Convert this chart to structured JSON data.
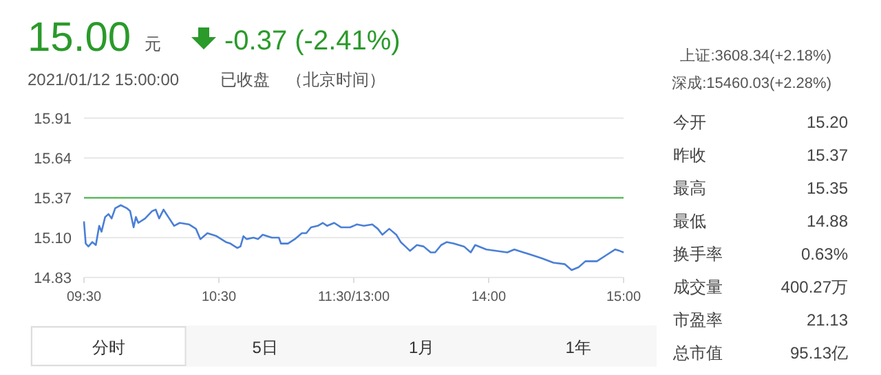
{
  "chart_data": [
    {
      "type": "line",
      "title": "15.00",
      "annotations": [
        "元",
        "-0.37 (-2.41%)",
        "2021/01/12 15:00:00",
        "已收盘",
        "（北京时间）",
        "上证:3608.34(+2.18%)",
        "深成:15460.03(+2.28%)",
        "分时",
        "5日",
        "1月",
        "1年"
      ],
      "series": [
        {
          "color": "#4a7fd6",
          "x": [
            9.5,
            9.513,
            9.533,
            9.562,
            9.588,
            9.613,
            9.63,
            9.657,
            9.682,
            9.705,
            9.732,
            9.773,
            9.817,
            9.842,
            9.868,
            9.885,
            9.903,
            9.953,
            10.005,
            10.032,
            10.057,
            10.09,
            10.125,
            10.168,
            10.21,
            10.278,
            10.33,
            10.363,
            10.415,
            10.483,
            10.552,
            10.585,
            10.637,
            10.66,
            10.682,
            10.705,
            10.757,
            10.79,
            10.825,
            10.893,
            10.945,
            10.96,
            11.012,
            11.063,
            11.115,
            11.148,
            11.183,
            11.233,
            11.27,
            11.303,
            11.355,
            11.405,
            11.473,
            11.5
          ],
          "values": [
            15.21,
            15.06,
            15.04,
            15.07,
            15.05,
            15.18,
            15.14,
            15.24,
            15.26,
            15.23,
            15.3,
            15.32,
            15.3,
            15.28,
            15.17,
            15.24,
            15.2,
            15.23,
            15.28,
            15.29,
            15.23,
            15.29,
            15.24,
            15.18,
            15.2,
            15.19,
            15.16,
            15.09,
            15.13,
            15.11,
            15.07,
            15.06,
            15.03,
            15.04,
            15.11,
            15.09,
            15.1,
            15.09,
            15.12,
            15.1,
            15.1,
            15.06,
            15.06,
            15.09,
            15.13,
            15.13,
            15.17,
            15.18,
            15.2,
            15.18,
            15.2,
            15.17,
            15.17,
            15.18
          ]
        }
      ],
      "xlim": [
        9.5,
        11.5
      ],
      "xticks": [
        {
          "value": 9.5,
          "label": "09:30"
        },
        {
          "value": 10.5,
          "label": "10:30"
        },
        {
          "value": 11.5,
          "label": "11:30/13:00"
        }
      ],
      "ylim": [
        14.83,
        15.91
      ],
      "yticks": [
        14.83,
        {
          "value": 15.1,
          "label": "15.10"
        },
        15.37,
        15.64,
        15.91
      ],
      "grid": "y",
      "marker": "none",
      "line_style": "solid",
      "ref_lines": [
        {
          "axis": "y",
          "value": 15.37,
          "color": "#5cb85c"
        }
      ]
    },
    {
      "type": "line",
      "series": [
        {
          "color": "#4a7fd6",
          "x": [
            13.0,
            13.023,
            13.075,
            13.137,
            13.178,
            13.212,
            13.263,
            13.315,
            13.348,
            13.383,
            13.417,
            13.468,
            13.518,
            13.57,
            13.603,
            13.648,
            13.69,
            13.74,
            13.817,
            13.867,
            13.9,
            13.983,
            14.138,
            14.19,
            14.327,
            14.393,
            14.48,
            14.565,
            14.615,
            14.667,
            14.717,
            14.802,
            14.87,
            14.938,
            14.972,
            15
          ],
          "values": [
            15.18,
            15.19,
            15.18,
            15.19,
            15.16,
            15.12,
            15.16,
            15.12,
            15.07,
            15.04,
            15.01,
            15.05,
            15.04,
            15.0,
            15.0,
            15.05,
            15.07,
            15.06,
            15.04,
            15.0,
            15.05,
            15.02,
            15.0,
            15.02,
            14.98,
            14.96,
            14.93,
            14.92,
            14.88,
            14.9,
            14.94,
            14.94,
            14.98,
            15.02,
            15.01,
            15.0
          ]
        }
      ],
      "xlim": [
        13,
        15
      ],
      "xticks": [
        {
          "value": 13,
          "label": null
        },
        {
          "value": 14,
          "label": "14:00"
        },
        {
          "value": 15,
          "label": "15:00"
        }
      ],
      "ylim": [
        14.83,
        15.91
      ],
      "yticks": [
        14.83,
        15.1,
        15.37,
        15.64,
        15.91
      ],
      "tick_labels": "x",
      "grid": "y",
      "marker": "none",
      "line_style": "solid",
      "ref_lines": [
        {
          "axis": "y",
          "value": 15.37,
          "color": "#5cb85c"
        }
      ]
    },
    {
      "type": "other",
      "annotations": [
        "今开",
        "15.20",
        "昨收",
        "15.37",
        "最高",
        "15.35",
        "最低",
        "14.88",
        "换手率",
        "0.63%",
        "成交量",
        "400.27万",
        "市盈率",
        "21.13",
        "总市值",
        "95.13亿"
      ]
    }
  ]
}
